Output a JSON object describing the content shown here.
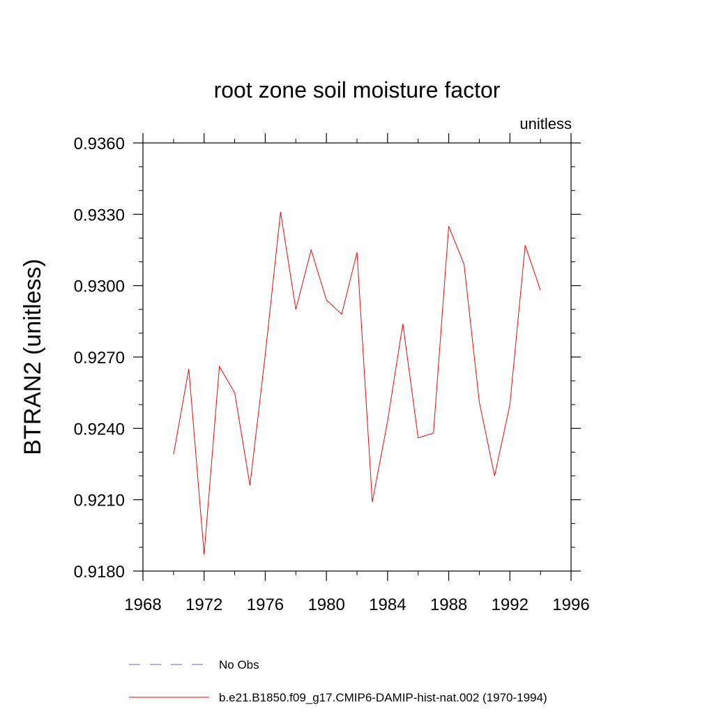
{
  "chart_data": {
    "type": "line",
    "title": "root zone soil moisture factor",
    "units_label": "unitless",
    "ylabel": "BTRAN2  (unitless)",
    "xlabel": "",
    "xlim": [
      1968,
      1996
    ],
    "ylim": [
      0.918,
      0.936
    ],
    "x_ticks": [
      1968,
      1972,
      1976,
      1980,
      1984,
      1988,
      1992,
      1996
    ],
    "x_tick_labels": [
      "1968",
      "1972",
      "1976",
      "1980",
      "1984",
      "1988",
      "1992",
      "1996"
    ],
    "y_ticks": [
      0.918,
      0.921,
      0.924,
      0.927,
      0.93,
      0.933,
      0.936
    ],
    "y_tick_labels": [
      "0.9180",
      "0.9210",
      "0.9240",
      "0.9270",
      "0.9300",
      "0.9330",
      "0.9360"
    ],
    "grid": false,
    "legend_position": "bottom",
    "series": [
      {
        "name": "No Obs",
        "color": "#6a5acd",
        "style": "dashed",
        "x": [],
        "y": []
      },
      {
        "name": "b.e21.B1850.f09_g17.CMIP6-DAMIP-hist-nat.002 (1970-1994)",
        "color": "#ff0000",
        "style": "solid",
        "x": [
          1970,
          1971,
          1972,
          1973,
          1974,
          1975,
          1976,
          1977,
          1978,
          1979,
          1980,
          1981,
          1982,
          1983,
          1984,
          1985,
          1986,
          1987,
          1988,
          1989,
          1990,
          1991,
          1992,
          1993,
          1994
        ],
        "y": [
          0.9229,
          0.9265,
          0.9187,
          0.9266,
          0.9255,
          0.9216,
          0.9271,
          0.9331,
          0.929,
          0.9315,
          0.9294,
          0.9288,
          0.9314,
          0.9209,
          0.9243,
          0.9284,
          0.9236,
          0.9238,
          0.9325,
          0.9309,
          0.9251,
          0.922,
          0.925,
          0.9317,
          0.9298
        ]
      }
    ]
  }
}
